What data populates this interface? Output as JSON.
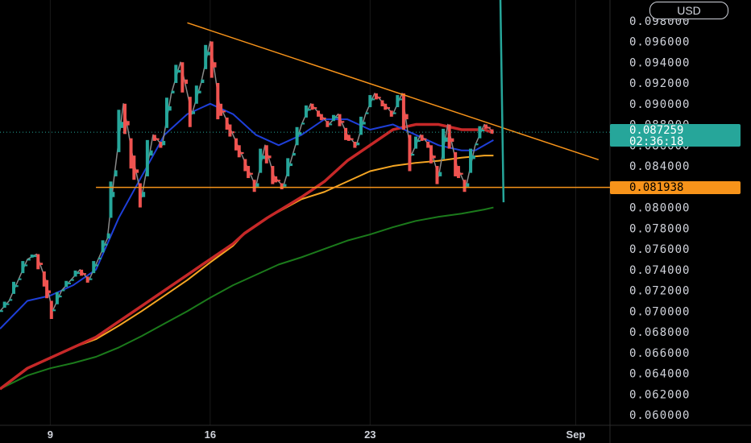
{
  "currency_button": "USD",
  "colors": {
    "up": "#26a69a",
    "down": "#ef5350",
    "ma_blue": "#1e3fd8",
    "ma_red": "#c62828",
    "ma_orange": "#f5a623",
    "ma_green": "#1b7a1b",
    "trendline": "#f7931a",
    "wick": "#8a8a8a"
  },
  "last_price": {
    "price": "0.087259",
    "countdown": "02:36:18"
  },
  "horizontal_level": {
    "price": "0.081938",
    "value": 0.081938
  },
  "chart_data": {
    "type": "line",
    "title": "",
    "xlabel": "",
    "ylabel": "",
    "ylim": [
      0.059,
      0.1
    ],
    "y_ticks": [
      "0.060000",
      "0.062000",
      "0.064000",
      "0.066000",
      "0.068000",
      "0.070000",
      "0.072000",
      "0.074000",
      "0.076000",
      "0.078000",
      "0.080000",
      "0.084000",
      "0.086000",
      "0.088000",
      "0.090000",
      "0.092000",
      "0.094000",
      "0.096000",
      "0.098000"
    ],
    "x_ticks": [
      "9",
      "16",
      "23",
      "Sep"
    ],
    "x_tick_days": [
      9,
      16,
      23,
      32
    ],
    "xlim_days": [
      6.8,
      33.5
    ],
    "series": [
      {
        "name": "",
        "role": "price",
        "x": [
          6.8,
          7.2,
          7.6,
          8.0,
          8.4,
          8.8,
          9.1,
          9.5,
          9.9,
          10.3,
          10.7,
          11.1,
          11.5,
          11.8,
          12.2,
          12.6,
          13.0,
          13.5,
          13.9,
          14.3,
          14.7,
          15.2,
          15.6,
          16.0,
          16.4,
          16.8,
          17.2,
          17.6,
          18.0,
          18.4,
          18.8,
          19.2,
          19.6,
          20.0,
          20.4,
          20.8,
          21.2,
          21.6,
          22.0,
          22.4,
          22.8,
          23.2,
          23.6,
          24.0,
          24.4,
          24.8,
          25.2,
          25.6,
          26.0,
          26.4,
          26.8,
          27.2,
          27.6,
          28.0,
          28.4
        ],
        "values": [
          0.07,
          0.071,
          0.073,
          0.075,
          0.0755,
          0.073,
          0.07,
          0.072,
          0.073,
          0.074,
          0.073,
          0.075,
          0.077,
          0.083,
          0.09,
          0.085,
          0.081,
          0.087,
          0.086,
          0.091,
          0.094,
          0.089,
          0.092,
          0.096,
          0.09,
          0.088,
          0.086,
          0.084,
          0.082,
          0.086,
          0.083,
          0.082,
          0.085,
          0.088,
          0.09,
          0.089,
          0.088,
          0.089,
          0.087,
          0.086,
          0.089,
          0.091,
          0.09,
          0.089,
          0.091,
          0.085,
          0.087,
          0.086,
          0.083,
          0.088,
          0.084,
          0.082,
          0.086,
          0.088,
          0.0873
        ]
      },
      {
        "name": "",
        "role": "ma_fast",
        "x": [
          6.8,
          8.0,
          9.0,
          10.0,
          11.0,
          12.0,
          13.0,
          14.0,
          15.0,
          16.0,
          17.0,
          18.0,
          19.0,
          20.0,
          21.0,
          22.0,
          23.0,
          24.0,
          25.0,
          26.0,
          27.0,
          27.6,
          28.4
        ],
        "values": [
          0.0683,
          0.071,
          0.0715,
          0.0725,
          0.074,
          0.079,
          0.083,
          0.087,
          0.089,
          0.09,
          0.089,
          0.087,
          0.086,
          0.087,
          0.0885,
          0.0885,
          0.0875,
          0.088,
          0.087,
          0.086,
          0.0855,
          0.0855,
          0.0865
        ]
      },
      {
        "name": "",
        "role": "ma_mid",
        "x": [
          6.8,
          8.0,
          9.0,
          10.0,
          11.0,
          12.0,
          13.0,
          14.0,
          15.0,
          16.0,
          17.0,
          17.5,
          18.5,
          20.0,
          21.0,
          22.0,
          23.0,
          24.0,
          25.0,
          26.0,
          27.0,
          28.0,
          28.4
        ],
        "values": [
          0.0625,
          0.0645,
          0.0655,
          0.0665,
          0.0675,
          0.069,
          0.0705,
          0.072,
          0.0735,
          0.075,
          0.0765,
          0.0775,
          0.079,
          0.081,
          0.0825,
          0.0845,
          0.086,
          0.0875,
          0.088,
          0.088,
          0.0875,
          0.0875,
          0.0872
        ]
      },
      {
        "name": "",
        "role": "ma_slow",
        "x": [
          6.8,
          8.0,
          9.0,
          10.0,
          11.0,
          12.0,
          13.0,
          14.0,
          15.0,
          16.0,
          17.0,
          17.5,
          18.5,
          20.0,
          21.0,
          22.0,
          23.0,
          24.0,
          25.0,
          26.0,
          27.0,
          28.0,
          28.4
        ],
        "values": [
          0.0625,
          0.0645,
          0.0655,
          0.0665,
          0.0673,
          0.0686,
          0.07,
          0.0715,
          0.073,
          0.0747,
          0.0763,
          0.0775,
          0.079,
          0.0808,
          0.0815,
          0.0825,
          0.0835,
          0.084,
          0.0843,
          0.0845,
          0.0848,
          0.085,
          0.085
        ]
      },
      {
        "name": "",
        "role": "ma_long",
        "x": [
          6.8,
          8.0,
          9.0,
          10.0,
          11.0,
          12.0,
          13.0,
          14.0,
          15.0,
          16.0,
          17.0,
          18.0,
          19.0,
          20.0,
          21.0,
          22.0,
          23.0,
          24.0,
          25.0,
          26.0,
          27.0,
          28.0,
          28.4
        ],
        "values": [
          0.0625,
          0.0638,
          0.0645,
          0.065,
          0.0656,
          0.0665,
          0.0676,
          0.0688,
          0.07,
          0.0713,
          0.0725,
          0.0735,
          0.0745,
          0.0752,
          0.076,
          0.0768,
          0.0774,
          0.0781,
          0.0787,
          0.0791,
          0.0794,
          0.0798,
          0.08
        ]
      }
    ],
    "trendlines": [
      {
        "x": [
          15.0,
          33.0
        ],
        "values": [
          0.0978,
          0.0846
        ]
      },
      {
        "x": [
          11.0,
          33.5
        ],
        "values": [
          0.081938,
          0.081938
        ]
      }
    ],
    "spike": {
      "x": 28.7,
      "values": [
        0.1005,
        0.0805
      ]
    }
  }
}
